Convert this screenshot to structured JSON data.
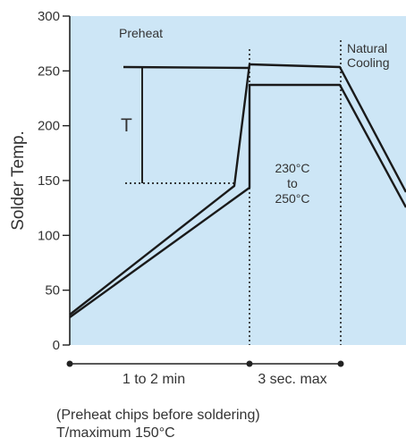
{
  "chart_data": {
    "type": "line",
    "ylabel": "Solder Temp.",
    "ylim": [
      0,
      300
    ],
    "yticks": [
      0,
      50,
      100,
      150,
      200,
      250,
      300
    ],
    "background_color": "#cde6f6",
    "line_color": "#1a1a1a",
    "series": [
      {
        "values": [
          [
            0,
            25
          ],
          [
            1.2,
            148
          ],
          [
            1.35,
            255
          ],
          [
            1.95,
            255
          ],
          [
            2.6,
            135
          ]
        ]
      },
      {
        "values": [
          [
            0,
            25
          ],
          [
            1.35,
            142
          ],
          [
            1.38,
            235
          ],
          [
            1.95,
            235
          ],
          [
            2.6,
            135
          ]
        ]
      }
    ],
    "annotations": {
      "preheat": "Preheat",
      "natural_line1": "Natural",
      "natural_line2": "Cooling",
      "t_marker": "T",
      "peak_line1": "230°C",
      "peak_line2": "to",
      "peak_line3": "250°C"
    },
    "phases": [
      {
        "label": "1 to 2 min"
      },
      {
        "label": "3 sec. max"
      }
    ]
  },
  "notes": {
    "line1": "(Preheat chips before soldering)",
    "line2": "T/maximum 150°C"
  }
}
